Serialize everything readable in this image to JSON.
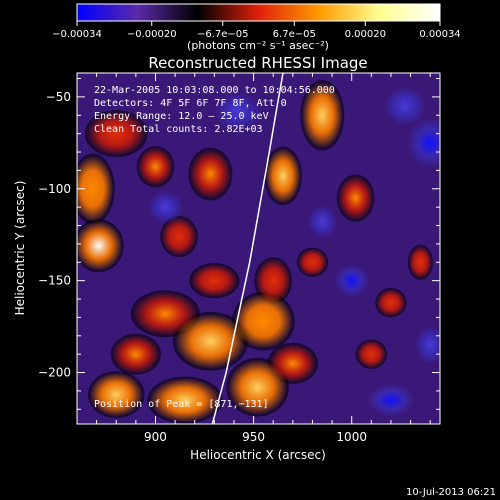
{
  "chart_data": {
    "type": "heatmap",
    "title": "Reconstructed RHESSI Image",
    "xlabel": "Heliocentric X (arcsec)",
    "ylabel": "Heliocentric Y (arcsec)",
    "xlim": [
      860,
      1045
    ],
    "ylim": [
      -228,
      -37
    ],
    "x_ticks": [
      900,
      950,
      1000
    ],
    "y_ticks": [
      -200,
      -150,
      -100,
      -50
    ],
    "x_tick_labels": [
      "900",
      "950",
      "1000"
    ],
    "y_tick_labels": [
      "−200",
      "−150",
      "−100",
      "−50"
    ],
    "colorbar": {
      "min": -0.00034,
      "max": 0.00034,
      "ticks": [
        -0.00034,
        -0.0002,
        -6.7e-05,
        6.7e-05,
        0.0002,
        0.00034
      ],
      "tick_labels": [
        "−0.00034",
        "−0.00020",
        "−6.7e−05",
        "6.7e−05",
        "0.00020",
        "0.00034"
      ],
      "unit_label": "(photons cm⁻² s⁻¹ asec⁻²)",
      "colors": [
        "#0000ff",
        "#5a2aa8",
        "#000000",
        "#e0200a",
        "#ff9a00",
        "#ffff90",
        "#ffffff"
      ]
    },
    "annotations": [
      "22‑Mar‑2005 10:03:08.000 to 10:04:56.000",
      "Detectors: 4F 5F 6F 7F 8F, Att 0",
      "Energy Range: 12.0 – 25.0 keV",
      "Clean     Total counts: 2.82E+03"
    ],
    "peak_label": "Position of Peak = [871,−131]",
    "peak": [
      871,
      -131
    ],
    "limb_curve": [
      [
        929,
        -228
      ],
      [
        936,
        -200
      ],
      [
        942,
        -170
      ],
      [
        948,
        -140
      ],
      [
        953,
        -110
      ],
      [
        958,
        -80
      ],
      [
        962,
        -55
      ],
      [
        965,
        -37
      ]
    ],
    "blobs": [
      {
        "x": 871,
        "y": -131,
        "v": 0.00034,
        "sx": 8,
        "sy": 9
      },
      {
        "x": 868,
        "y": -100,
        "v": 0.00018,
        "sx": 7,
        "sy": 12
      },
      {
        "x": 880,
        "y": -70,
        "v": 0.00012,
        "sx": 10,
        "sy": 8
      },
      {
        "x": 900,
        "y": -88,
        "v": 0.00014,
        "sx": 6,
        "sy": 7
      },
      {
        "x": 912,
        "y": -126,
        "v": 0.00013,
        "sx": 6,
        "sy": 7
      },
      {
        "x": 928,
        "y": -92,
        "v": 0.00016,
        "sx": 7,
        "sy": 9
      },
      {
        "x": 930,
        "y": -150,
        "v": 0.00012,
        "sx": 8,
        "sy": 6
      },
      {
        "x": 965,
        "y": -93,
        "v": 0.00019,
        "sx": 6,
        "sy": 10
      },
      {
        "x": 985,
        "y": -60,
        "v": 0.00021,
        "sx": 7,
        "sy": 12
      },
      {
        "x": 1002,
        "y": -105,
        "v": 0.00015,
        "sx": 6,
        "sy": 8
      },
      {
        "x": 980,
        "y": -140,
        "v": 0.00011,
        "sx": 5,
        "sy": 5
      },
      {
        "x": 1020,
        "y": -162,
        "v": 0.00012,
        "sx": 5,
        "sy": 5
      },
      {
        "x": 1035,
        "y": -140,
        "v": 0.0001,
        "sx": 4,
        "sy": 6
      },
      {
        "x": 1010,
        "y": -190,
        "v": 0.0001,
        "sx": 5,
        "sy": 5
      },
      {
        "x": 905,
        "y": -168,
        "v": 0.00016,
        "sx": 11,
        "sy": 8
      },
      {
        "x": 928,
        "y": -183,
        "v": 0.00022,
        "sx": 12,
        "sy": 10
      },
      {
        "x": 955,
        "y": -172,
        "v": 0.00018,
        "sx": 10,
        "sy": 10
      },
      {
        "x": 890,
        "y": -190,
        "v": 0.00014,
        "sx": 8,
        "sy": 7
      },
      {
        "x": 880,
        "y": -212,
        "v": 0.0002,
        "sx": 9,
        "sy": 8
      },
      {
        "x": 915,
        "y": -215,
        "v": 0.00022,
        "sx": 12,
        "sy": 8
      },
      {
        "x": 952,
        "y": -208,
        "v": 0.00022,
        "sx": 10,
        "sy": 10
      },
      {
        "x": 970,
        "y": -195,
        "v": 0.00015,
        "sx": 8,
        "sy": 7
      },
      {
        "x": 960,
        "y": -150,
        "v": 0.00012,
        "sx": 6,
        "sy": 8
      },
      {
        "x": 1040,
        "y": -75,
        "v": -0.00025,
        "sx": 8,
        "sy": 9
      },
      {
        "x": 1027,
        "y": -55,
        "v": -0.0002,
        "sx": 7,
        "sy": 7
      },
      {
        "x": 1000,
        "y": -150,
        "v": -0.00025,
        "sx": 6,
        "sy": 6
      },
      {
        "x": 1020,
        "y": -215,
        "v": -0.00023,
        "sx": 8,
        "sy": 6
      },
      {
        "x": 942,
        "y": -58,
        "v": -0.0002,
        "sx": 8,
        "sy": 7
      },
      {
        "x": 905,
        "y": -110,
        "v": -0.00012,
        "sx": 6,
        "sy": 6
      },
      {
        "x": 1040,
        "y": -185,
        "v": -0.00018,
        "sx": 5,
        "sy": 7
      },
      {
        "x": 985,
        "y": -118,
        "v": -0.0001,
        "sx": 5,
        "sy": 6
      }
    ],
    "grid": false,
    "colorbar_position": "top"
  },
  "footer": {
    "date": "10-Jul-2013 06:21"
  }
}
